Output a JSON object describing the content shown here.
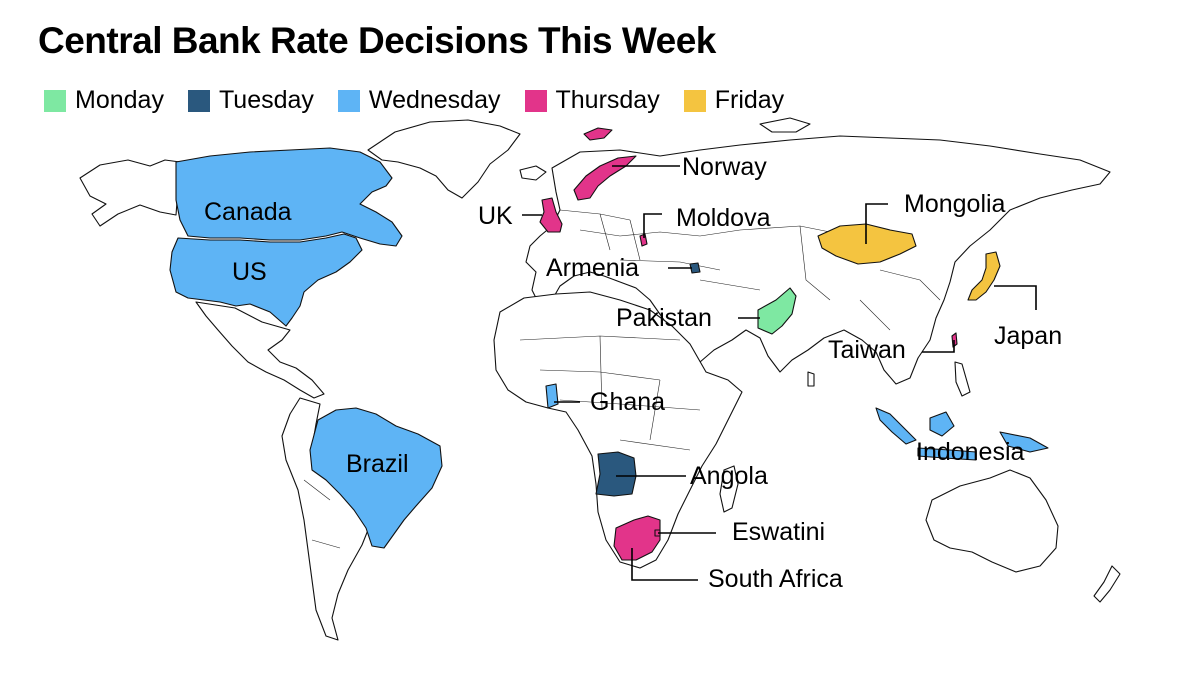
{
  "title": "Central Bank Rate Decisions This Week",
  "legend": [
    {
      "label": "Monday",
      "color": "#7ee8a2"
    },
    {
      "label": "Tuesday",
      "color": "#2a587e"
    },
    {
      "label": "Wednesday",
      "color": "#5eb4f5"
    },
    {
      "label": "Thursday",
      "color": "#e2348a"
    },
    {
      "label": "Friday",
      "color": "#f4c440"
    }
  ],
  "countries": {
    "canada": {
      "name": "Canada",
      "day": "Wednesday"
    },
    "us": {
      "name": "US",
      "day": "Wednesday"
    },
    "brazil": {
      "name": "Brazil",
      "day": "Wednesday"
    },
    "uk": {
      "name": "UK",
      "day": "Thursday"
    },
    "norway": {
      "name": "Norway",
      "day": "Thursday"
    },
    "moldova": {
      "name": "Moldova",
      "day": "Thursday"
    },
    "armenia": {
      "name": "Armenia",
      "day": "Tuesday"
    },
    "mongolia": {
      "name": "Mongolia",
      "day": "Friday"
    },
    "japan": {
      "name": "Japan",
      "day": "Friday"
    },
    "pakistan": {
      "name": "Pakistan",
      "day": "Monday"
    },
    "taiwan": {
      "name": "Taiwan",
      "day": "Thursday"
    },
    "ghana": {
      "name": "Ghana",
      "day": "Wednesday"
    },
    "indonesia": {
      "name": "Indonesia",
      "day": "Wednesday"
    },
    "angola": {
      "name": "Angola",
      "day": "Tuesday"
    },
    "eswatini": {
      "name": "Eswatini",
      "day": "Thursday"
    },
    "south_africa": {
      "name": "South Africa",
      "day": "Thursday"
    }
  }
}
